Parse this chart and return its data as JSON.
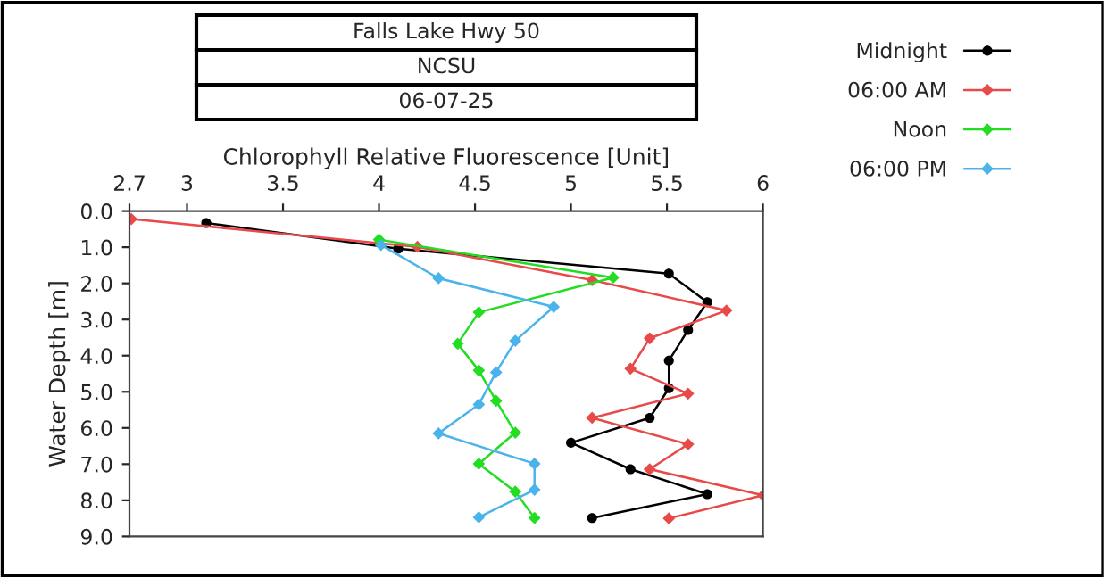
{
  "chart_data": {
    "type": "line",
    "title": "Falls Lake Hwy 50",
    "subtitle": "NCSU",
    "annotations": [
      "06-07-25"
    ],
    "xlabel": "Chlorophyll Relative Fluorescence [Unit]",
    "ylabel": "Water Depth [m]",
    "xlim": [
      2.7,
      6
    ],
    "xticks": [
      2.7,
      3,
      3.5,
      4,
      4.5,
      5,
      5.5,
      6
    ],
    "ylim": [
      9,
      0
    ],
    "yticks": [
      {
        "value": 0,
        "label": "0.0"
      },
      {
        "value": 1,
        "label": "1.0"
      },
      {
        "value": 2,
        "label": "2.0"
      },
      {
        "value": 3,
        "label": "3.0"
      },
      {
        "value": 4,
        "label": "4.0"
      },
      {
        "value": 5,
        "label": "5.0"
      },
      {
        "value": 6,
        "label": "6.0"
      },
      {
        "value": 7,
        "label": "7.0"
      },
      {
        "value": 8,
        "label": "8.0"
      },
      {
        "value": 9,
        "label": "9.0"
      }
    ],
    "grid": false,
    "legend": "top right",
    "line_style": "solid",
    "series": [
      {
        "name": "Midnight",
        "color": "#000000",
        "marker": "circle",
        "x": [
          3.1,
          4.1,
          5.51,
          5.71,
          5.61,
          5.51,
          5.51,
          5.41,
          5.0,
          5.31,
          5.71,
          5.11
        ],
        "values": [
          0.33,
          1.04,
          1.73,
          2.52,
          3.29,
          4.14,
          4.9,
          5.72,
          6.41,
          7.14,
          7.83,
          8.49
        ]
      },
      {
        "name": "06:00 AM",
        "color": "#e84a4a",
        "marker": "diamond",
        "x": [
          2.71,
          4.2,
          5.11,
          5.81,
          5.41,
          5.31,
          5.61,
          5.11,
          5.61,
          5.41,
          6.0,
          5.51
        ],
        "values": [
          0.22,
          0.99,
          1.91,
          2.75,
          3.52,
          4.36,
          5.05,
          5.72,
          6.45,
          7.14,
          7.86,
          8.5
        ]
      },
      {
        "name": "Noon",
        "color": "#22dd22",
        "marker": "diamond",
        "x": [
          4.0,
          5.22,
          4.52,
          4.41,
          4.52,
          4.61,
          4.71,
          4.52,
          4.71,
          4.81
        ],
        "values": [
          0.79,
          1.84,
          2.8,
          3.67,
          4.41,
          5.25,
          6.13,
          6.99,
          7.76,
          8.49
        ]
      },
      {
        "name": "06:00 PM",
        "color": "#4ab4ea",
        "marker": "diamond",
        "x": [
          4.01,
          4.31,
          4.91,
          4.71,
          4.61,
          4.52,
          4.31,
          4.81,
          4.81,
          4.52
        ],
        "values": [
          0.94,
          1.86,
          2.65,
          3.59,
          4.46,
          5.35,
          6.15,
          6.99,
          7.71,
          8.47
        ]
      }
    ]
  }
}
